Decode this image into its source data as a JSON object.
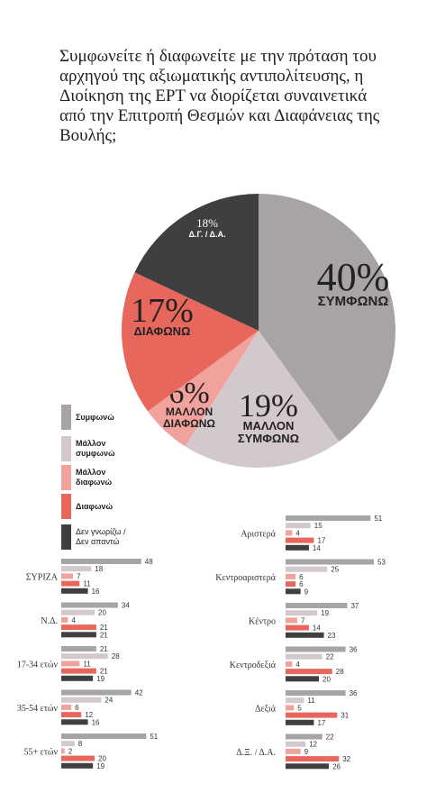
{
  "chart_data": [
    {
      "type": "pie",
      "title": "Συμφωνείτε ή διαφωνείτε με την πρόταση του αρχηγού της αξιωματικής αντιπολίτευσης, η Διοίκηση της ΕΡΤ να διορίζεται συναινετικά από την Επιτροπή Θεσμών και Διαφάνειας της Βουλής;",
      "categories": [
        "ΣΥΜΦΩΝΩ",
        "ΜΑΛΛΟΝ ΣΥΜΦΩΝΩ",
        "ΜΑΛΛΟΝ ΔΙΑΦΩΝΩ",
        "ΔΙΑΦΩΝΩ",
        "Δ.Γ. / Δ.Α."
      ],
      "values": [
        40,
        19,
        6,
        17,
        18
      ],
      "value_labels": [
        "40%",
        "19%",
        "6%",
        "17%",
        "18%"
      ],
      "colors": [
        "#a8a3a4",
        "#d3c9cd",
        "#f1a29c",
        "#e8675c",
        "#3f3e40"
      ]
    },
    {
      "type": "bar",
      "categories": [
        "ΣΥΡΙΖΑ",
        "Ν.Δ.",
        "17-34 ετών",
        "35-54 ετών",
        "55+ ετών",
        "Αριστερά",
        "Κεντροαριστερά",
        "Κέντρο",
        "Κεντροδεξιά",
        "Δεξιά",
        "Δ.Ξ. / Δ.Α."
      ],
      "series": [
        {
          "name": "Συμφωνώ",
          "color": "#a8a3a4",
          "values": [
            48,
            34,
            21,
            42,
            51,
            51,
            53,
            37,
            36,
            36,
            22
          ]
        },
        {
          "name": "Μάλλον συμφωνώ",
          "color": "#d3c9cd",
          "values": [
            18,
            20,
            28,
            24,
            8,
            15,
            25,
            19,
            22,
            11,
            12
          ]
        },
        {
          "name": "Μάλλον διαφωνώ",
          "color": "#f1a29c",
          "values": [
            7,
            4,
            11,
            6,
            2,
            4,
            6,
            7,
            4,
            5,
            9
          ]
        },
        {
          "name": "Διαφωνώ",
          "color": "#e8675c",
          "values": [
            11,
            21,
            21,
            12,
            20,
            17,
            6,
            14,
            28,
            31,
            32
          ]
        },
        {
          "name": "Δεν γνωρίζω / Δεν απαντώ",
          "color": "#3f3e40",
          "values": [
            16,
            21,
            19,
            16,
            19,
            14,
            9,
            23,
            20,
            17,
            26
          ]
        }
      ]
    }
  ]
}
